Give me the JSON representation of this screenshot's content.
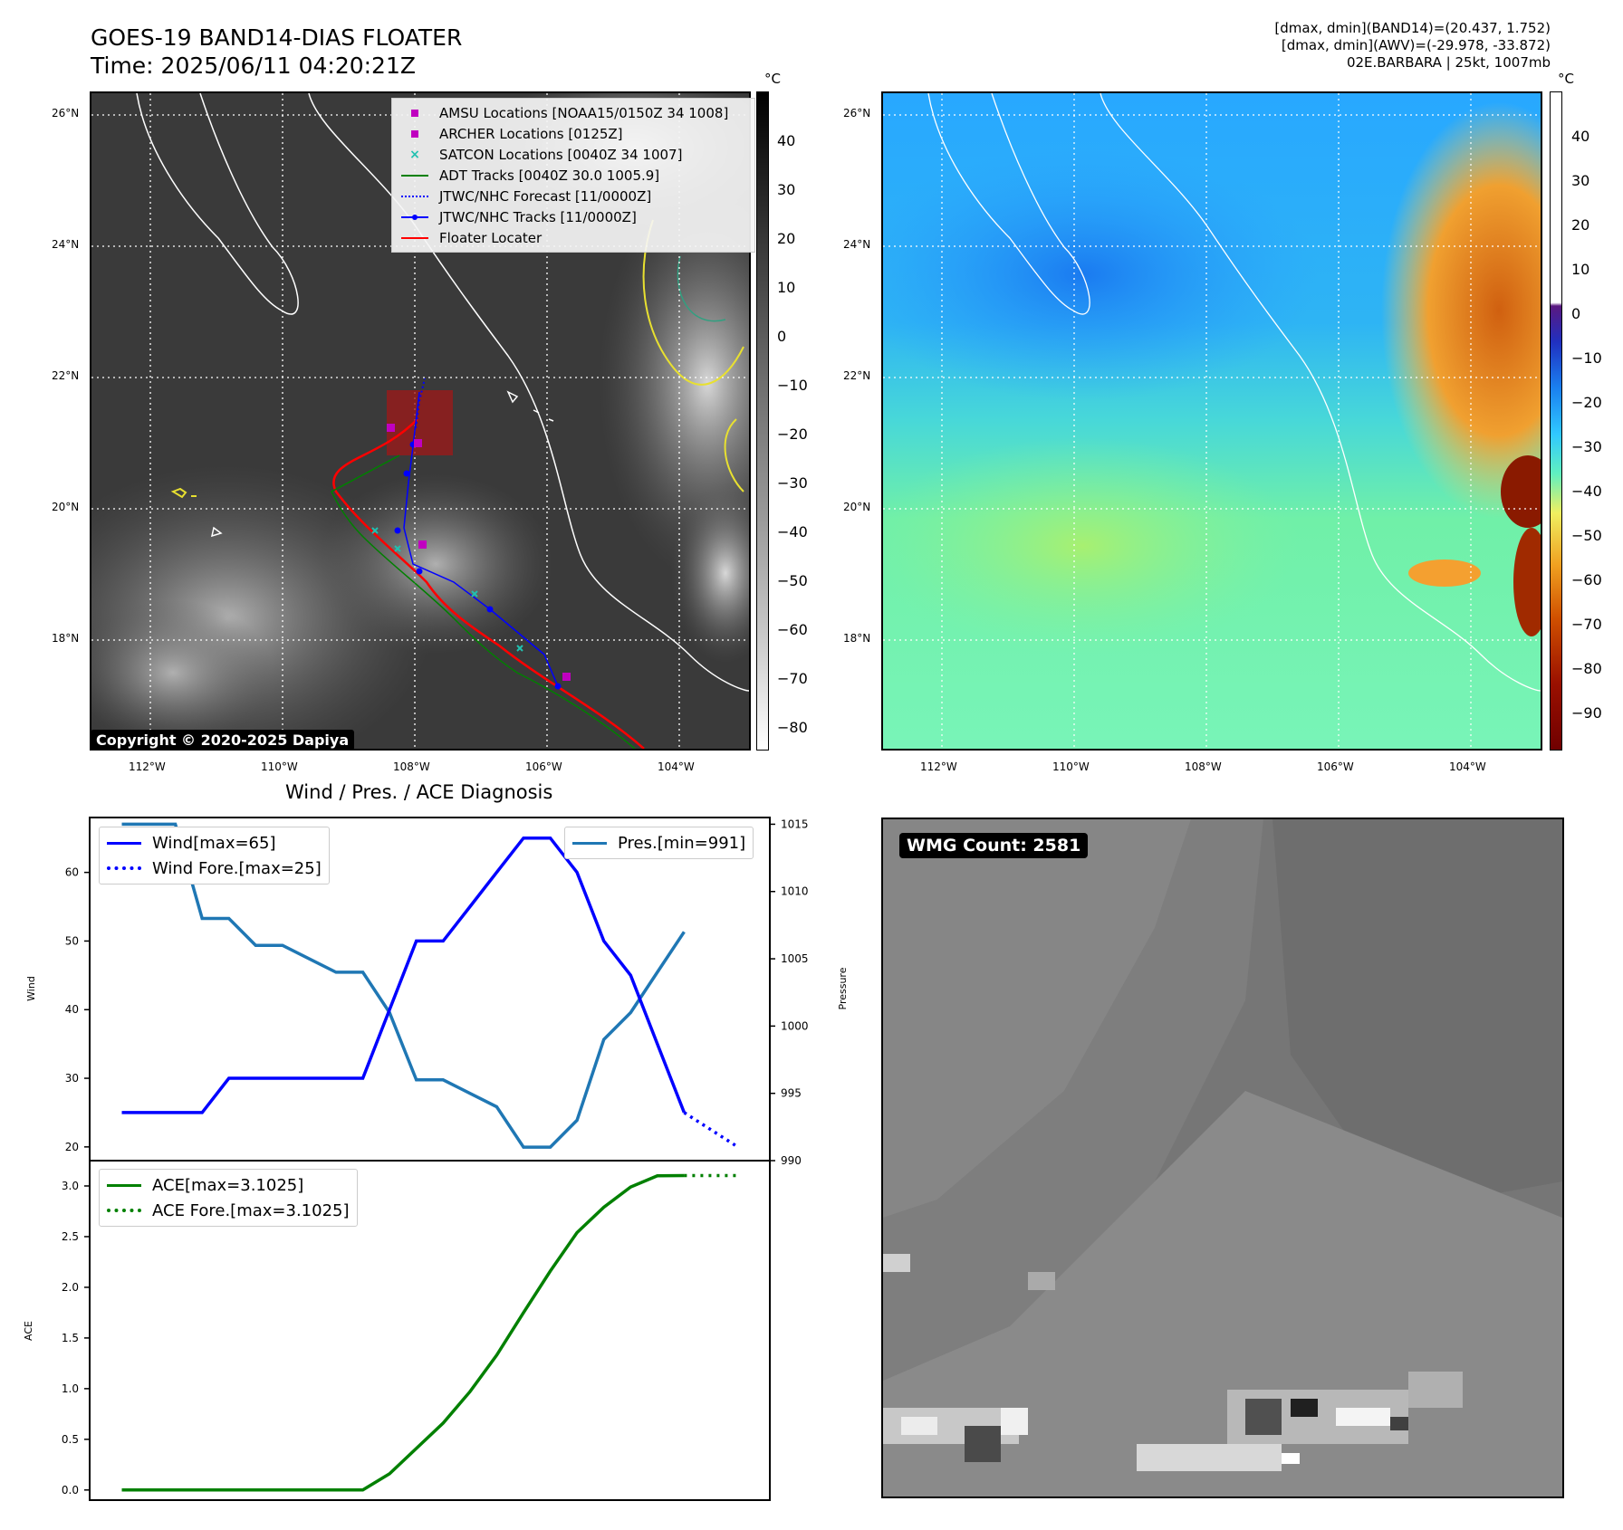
{
  "header": {
    "title_line1": "GOES-19 BAND14-DIAS FLOATER",
    "title_line2": "Time: 2025/06/11 04:20:21Z",
    "info_line1": "[dmax, dmin](BAND14)=(20.437, 1.752)",
    "info_line2": "[dmax, dmin](AWV)=(-29.978, -33.872)",
    "info_line3": "02E.BARBARA | 25kt, 1007mb"
  },
  "map": {
    "lon_labels": [
      "112°W",
      "110°W",
      "108°W",
      "106°W",
      "104°W"
    ],
    "lat_labels": [
      "26°N",
      "24°N",
      "22°N",
      "20°N",
      "18°N"
    ],
    "copyright": "Copyright © 2020-2025 Dapiya",
    "legend": [
      {
        "label": "AMSU Locations [NOAA15/0150Z 34 1008]",
        "color": "#c000c0",
        "style": "square"
      },
      {
        "label": "ARCHER Locations [0125Z]",
        "color": "#c000c0",
        "style": "square"
      },
      {
        "label": "SATCON Locations [0040Z 34 1007]",
        "color": "#20c0b0",
        "style": "x"
      },
      {
        "label": "ADT Tracks [0040Z 30.0 1005.9]",
        "color": "#008000",
        "style": "line"
      },
      {
        "label": "JTWC/NHC Forecast [11/0000Z]",
        "color": "#0000ff",
        "style": "dotted"
      },
      {
        "label": "JTWC/NHC Tracks [11/0000Z]",
        "color": "#0000ff",
        "style": "line-dot"
      },
      {
        "label": "Floater Locater",
        "color": "#ff0000",
        "style": "line"
      }
    ],
    "unit": "°C"
  },
  "colorbar_left": {
    "unit": "°C",
    "ticks": [
      "40",
      "30",
      "20",
      "10",
      "0",
      "−10",
      "−20",
      "−30",
      "−40",
      "−50",
      "−60",
      "−70",
      "−80"
    ]
  },
  "colorbar_right": {
    "unit": "°C",
    "ticks": [
      "40",
      "30",
      "20",
      "10",
      "0",
      "−10",
      "−20",
      "−30",
      "−40",
      "−50",
      "−60",
      "−70",
      "−80",
      "−90"
    ]
  },
  "diagnosis": {
    "title": "Wind / Pres. / ACE Diagnosis",
    "wind_axis_label": "Wind",
    "pressure_axis_label": "Pressure",
    "ace_axis_label": "ACE",
    "wind_legend": "Wind[max=65]",
    "wind_fore_legend": "Wind Fore.[max=25]",
    "pres_legend": "Pres.[min=991]",
    "ace_legend": "ACE[max=3.1025]",
    "ace_fore_legend": "ACE Fore.[max=3.1025]",
    "colors": {
      "wind": "#0000ff",
      "pressure": "#1f77b4",
      "ace": "#008000"
    }
  },
  "wmg": {
    "label": "WMG Count: 2581"
  },
  "chart_data": [
    {
      "type": "line",
      "title": "Wind / Pres. / ACE Diagnosis",
      "ylabel": "Wind",
      "ylim": [
        18,
        68
      ],
      "y2label": "Pressure",
      "y2lim": [
        990,
        1015.5
      ],
      "x": [
        0,
        1,
        2,
        3,
        4,
        5,
        6,
        7,
        8,
        9,
        10,
        11,
        12,
        13,
        14,
        15,
        16,
        17,
        18,
        19,
        20,
        21
      ],
      "series": [
        {
          "name": "Wind[max=65]",
          "axis": "left",
          "values": [
            25,
            25,
            25,
            25,
            30,
            30,
            30,
            30,
            30,
            30,
            40,
            50,
            50,
            55,
            60,
            65,
            65,
            60,
            50,
            45,
            35,
            25
          ]
        },
        {
          "name": "Pres.[min=991]",
          "axis": "right",
          "values": [
            1015,
            1015,
            1015,
            1008,
            1008,
            1006,
            1006,
            1005,
            1004,
            1004,
            1001,
            996,
            996,
            995,
            994,
            991,
            991,
            993,
            999,
            1001,
            1004,
            1007
          ]
        },
        {
          "name": "Wind Fore.[max=25]",
          "axis": "left",
          "x": [
            21,
            22,
            23
          ],
          "values": [
            25,
            22.5,
            20
          ]
        }
      ]
    },
    {
      "type": "line",
      "ylabel": "ACE",
      "ylim": [
        -0.1,
        3.25
      ],
      "x": [
        0,
        1,
        2,
        3,
        4,
        5,
        6,
        7,
        8,
        9,
        10,
        11,
        12,
        13,
        14,
        15,
        16,
        17,
        18,
        19,
        20,
        21
      ],
      "series": [
        {
          "name": "ACE[max=3.1025]",
          "values": [
            0,
            0,
            0,
            0,
            0,
            0,
            0,
            0,
            0,
            0,
            0.16,
            0.41,
            0.66,
            0.97,
            1.33,
            1.75,
            2.16,
            2.54,
            2.79,
            2.99,
            3.1,
            3.1025
          ]
        },
        {
          "name": "ACE Fore.[max=3.1025]",
          "x": [
            21,
            22,
            23
          ],
          "values": [
            3.1025,
            3.1025,
            3.1025
          ]
        }
      ]
    }
  ]
}
